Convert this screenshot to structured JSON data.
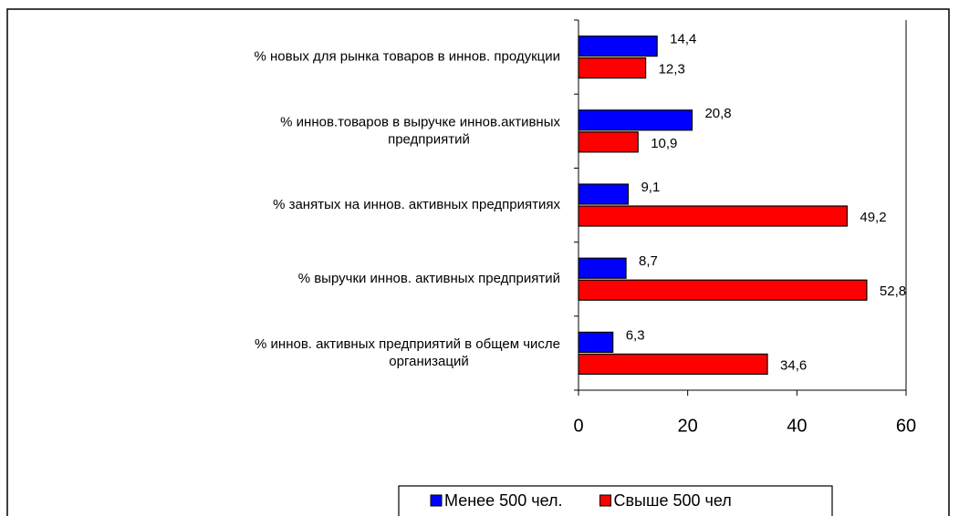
{
  "chart_data": {
    "type": "barh",
    "categories": [
      "% новых для рынка товаров в иннов. продукции",
      "% иннов.товаров в выручке иннов.активных\nпредприятий",
      "% занятых на иннов. активных предприятиях",
      "% выручки иннов. активных предприятий",
      "% иннов. активных предприятий  в общем числе\nорганизаций"
    ],
    "series": [
      {
        "name": "Менее 500 чел.",
        "color": "#0000ff",
        "values": [
          14.4,
          20.8,
          9.1,
          8.7,
          6.3
        ],
        "value_labels": [
          "14,4",
          "20,8",
          "9,1",
          "8,7",
          "6,3"
        ]
      },
      {
        "name": "Свыше 500 чел",
        "color": "#ff0000",
        "values": [
          12.3,
          10.9,
          49.2,
          52.8,
          34.6
        ],
        "value_labels": [
          "12,3",
          "10,9",
          "49,2",
          "52,8",
          "34,6"
        ]
      }
    ],
    "xlim": [
      0,
      60
    ],
    "xticks": [
      0,
      20,
      40,
      60
    ],
    "legend": "bottom"
  }
}
